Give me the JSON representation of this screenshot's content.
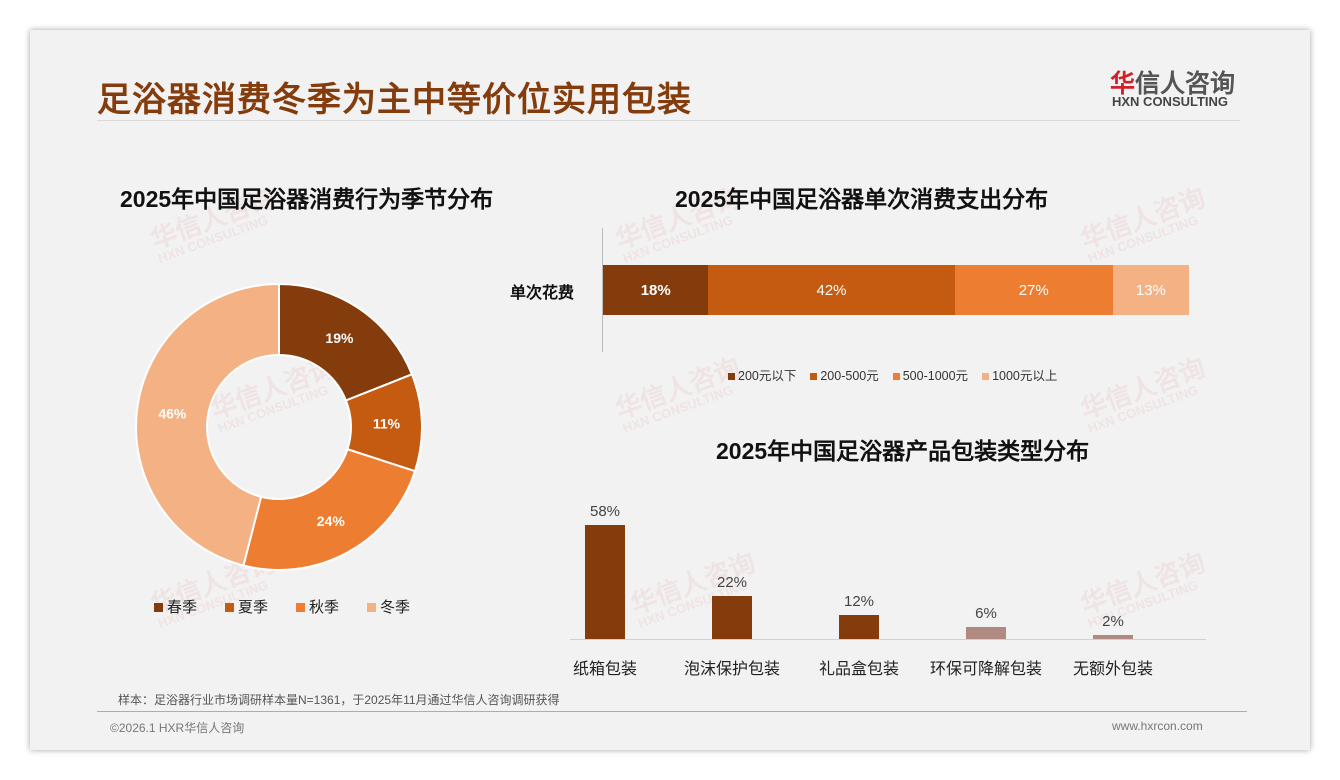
{
  "title": "足浴器消费冬季为主中等价位实用包装",
  "logo": {
    "cn_red": "华",
    "cn": "信人咨询",
    "en": "HXN CONSULTING"
  },
  "watermark": {
    "cn": "华信人咨询",
    "en": "HXN CONSULTING"
  },
  "footer": {
    "note": "样本：足浴器行业市场调研样本量N=1361，于2025年11月通过华信人咨询调研获得",
    "copyright": "©2026.1 HXR华信人咨询",
    "url": "www.hxrcon.com"
  },
  "colors": {
    "c1": "#843C0C",
    "c2": "#C55A11",
    "c3": "#ED7D31",
    "c4": "#F4B183",
    "muted": "#B08A80"
  },
  "chart_data": [
    {
      "type": "pie",
      "title": "2025年中国足浴器消费行为季节分布",
      "categories": [
        "春季",
        "夏季",
        "秋季",
        "冬季"
      ],
      "values": [
        19,
        11,
        24,
        46
      ],
      "labels": [
        "19%",
        "11%",
        "24%",
        "46%"
      ],
      "legend": "bottom",
      "donut": true
    },
    {
      "type": "bar",
      "stacked": true,
      "orientation": "horizontal",
      "title": "2025年中国足浴器单次消费支出分布",
      "categories": [
        "单次花费"
      ],
      "series": [
        {
          "name": "200元以下",
          "values": [
            18
          ],
          "label": "18%"
        },
        {
          "name": "200-500元",
          "values": [
            42
          ],
          "label": "42%"
        },
        {
          "name": "500-1000元",
          "values": [
            27
          ],
          "label": "27%"
        },
        {
          "name": "1000元以上",
          "values": [
            13
          ],
          "label": "13%"
        }
      ],
      "legend": "bottom"
    },
    {
      "type": "bar",
      "title": "2025年中国足浴器产品包装类型分布",
      "categories": [
        "纸箱包装",
        "泡沫保护包装",
        "礼品盒包装",
        "环保可降解包装",
        "无额外包装"
      ],
      "values": [
        58,
        22,
        12,
        6,
        2
      ],
      "labels": [
        "58%",
        "22%",
        "12%",
        "6%",
        "2%"
      ],
      "ylim": [
        0,
        60
      ]
    }
  ]
}
